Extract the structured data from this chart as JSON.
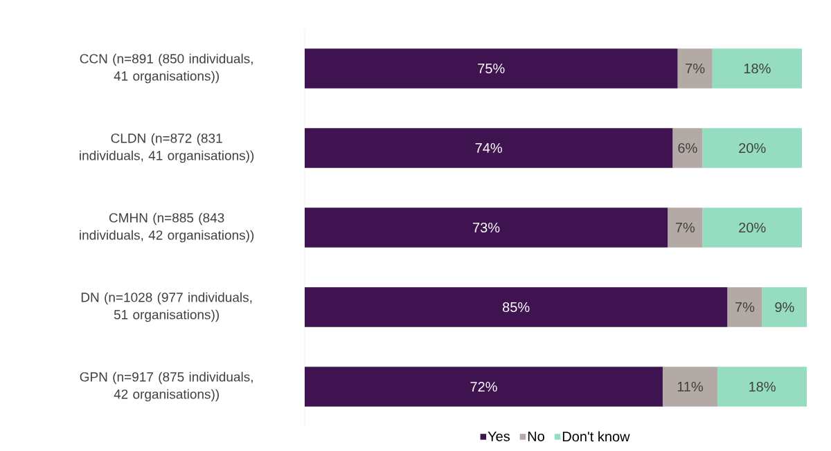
{
  "chart_data": {
    "type": "bar",
    "orientation": "horizontal",
    "stacked": true,
    "categories": [
      "CCN (n=891 (850 individuals, 41 organisations))",
      "CLDN (n=872 (831 individuals, 41 organisations))",
      "CMHN (n=885 (843 individuals, 42 organisations))",
      "DN (n=1028 (977 individuals, 51 organisations))",
      "GPN (n=917 (875 individuals, 42 organisations))"
    ],
    "series": [
      {
        "name": "Yes",
        "color": "#3f1350",
        "values": [
          75,
          74,
          73,
          85,
          72
        ],
        "value_labels": [
          "75%",
          "74%",
          "73%",
          "85%",
          "72%"
        ]
      },
      {
        "name": "No",
        "color": "#b3aaa6",
        "values": [
          7,
          6,
          7,
          7,
          11
        ],
        "value_labels": [
          "7%",
          "6%",
          "7%",
          "7%",
          "11%"
        ]
      },
      {
        "name": "Don't know",
        "color": "#96dcc0",
        "values": [
          18,
          20,
          20,
          9,
          18
        ],
        "value_labels": [
          "18%",
          "20%",
          "20%",
          "9%",
          "18%"
        ]
      }
    ],
    "xlim": [
      0,
      101
    ],
    "legend": "bottom"
  }
}
